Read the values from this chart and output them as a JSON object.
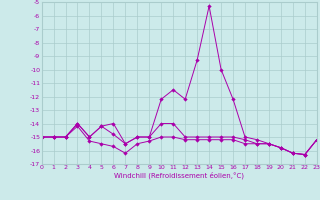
{
  "x": [
    0,
    1,
    2,
    3,
    4,
    5,
    6,
    7,
    8,
    9,
    10,
    11,
    12,
    13,
    14,
    15,
    16,
    17,
    18,
    19,
    20,
    21,
    22,
    23
  ],
  "line1": [
    -15,
    -15,
    -15,
    -14,
    -15,
    -14.2,
    -14,
    -15.5,
    -15,
    -15,
    -12.2,
    -11.5,
    -12.2,
    -9.3,
    -5.3,
    -10,
    -12.2,
    -15,
    -15.2,
    -15.5,
    -15.8,
    -16.2,
    -16.3,
    -15.2
  ],
  "line2": [
    -15,
    -15,
    -15,
    -14,
    -15,
    -14.2,
    -14.8,
    -15.5,
    -15,
    -15,
    -14,
    -14,
    -15,
    -15,
    -15,
    -15,
    -15,
    -15.2,
    -15.5,
    -15.5,
    -15.8,
    -16.2,
    -16.3,
    -15.2
  ],
  "line3": [
    -15,
    -15,
    -15,
    -14.2,
    -15.3,
    -15.5,
    -15.7,
    -16.2,
    -15.5,
    -15.3,
    -15,
    -15,
    -15.2,
    -15.2,
    -15.2,
    -15.2,
    -15.2,
    -15.5,
    -15.5,
    -15.5,
    -15.8,
    -16.2,
    -16.3,
    -15.2
  ],
  "bg_color": "#cceaea",
  "grid_color": "#aacccc",
  "line_color": "#aa00aa",
  "xlabel": "Windchill (Refroidissement éolien,°C)",
  "ylim": [
    -17,
    -5
  ],
  "xlim": [
    0,
    23
  ],
  "yticks": [
    -5,
    -6,
    -7,
    -8,
    -9,
    -10,
    -11,
    -12,
    -13,
    -14,
    -15,
    -16,
    -17
  ],
  "xticks": [
    0,
    1,
    2,
    3,
    4,
    5,
    6,
    7,
    8,
    9,
    10,
    11,
    12,
    13,
    14,
    15,
    16,
    17,
    18,
    19,
    20,
    21,
    22,
    23
  ]
}
